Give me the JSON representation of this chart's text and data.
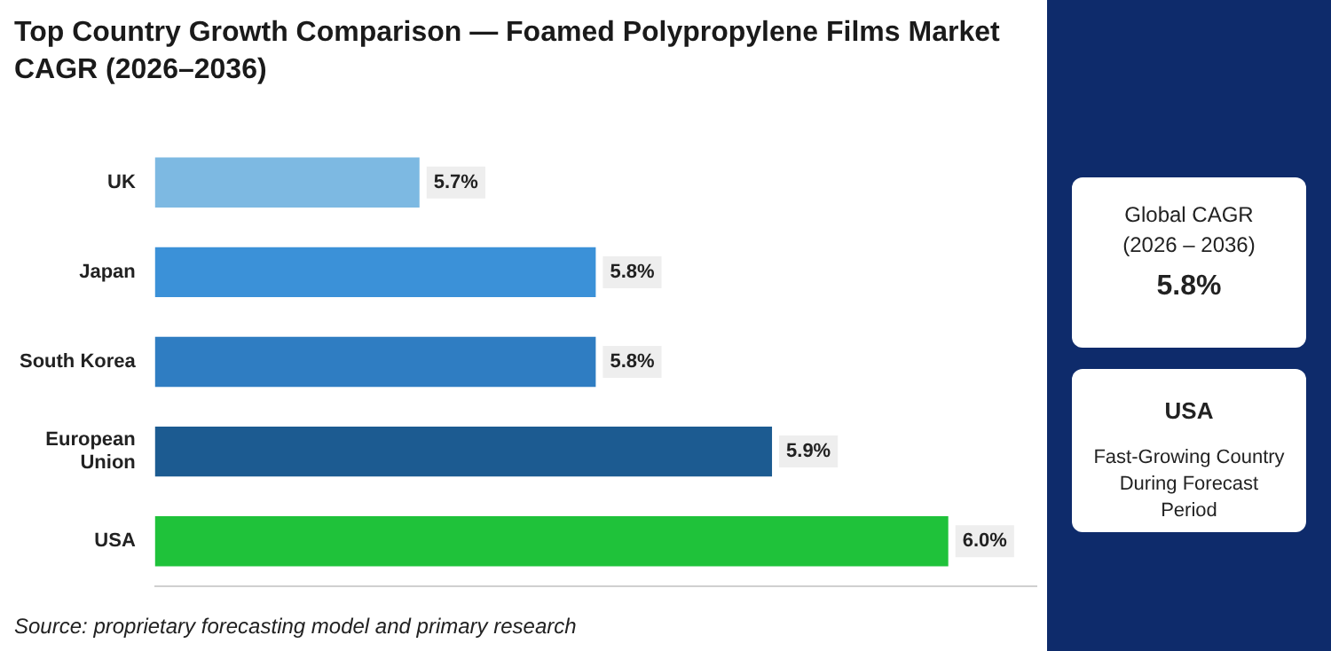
{
  "chart_data": {
    "type": "bar",
    "orientation": "horizontal",
    "title": "Top Country Growth Comparison — Foamed Polypropylene Films Market CAGR (2026–2036)",
    "categories": [
      "UK",
      "Japan",
      "South Korea",
      "European Union",
      "USA"
    ],
    "values": [
      5.7,
      5.8,
      5.8,
      5.9,
      6.0
    ],
    "colors": [
      "#7db9e2",
      "#3b91d8",
      "#2f7dc2",
      "#1c5b91",
      "#1fc23a"
    ],
    "value_labels": [
      "5.7%",
      "5.8%",
      "5.8%",
      "5.9%",
      "6.0%"
    ],
    "xlim": [
      5.55,
      6.05
    ],
    "tick_labels": "y",
    "legend": false,
    "annotations": [
      "Source: proprietary forecasting model and primary research",
      "Global CAGR",
      "(2026 – 2036)",
      "5.8%",
      "USA",
      "Fast-Growing Country During Forecast Period"
    ]
  }
}
